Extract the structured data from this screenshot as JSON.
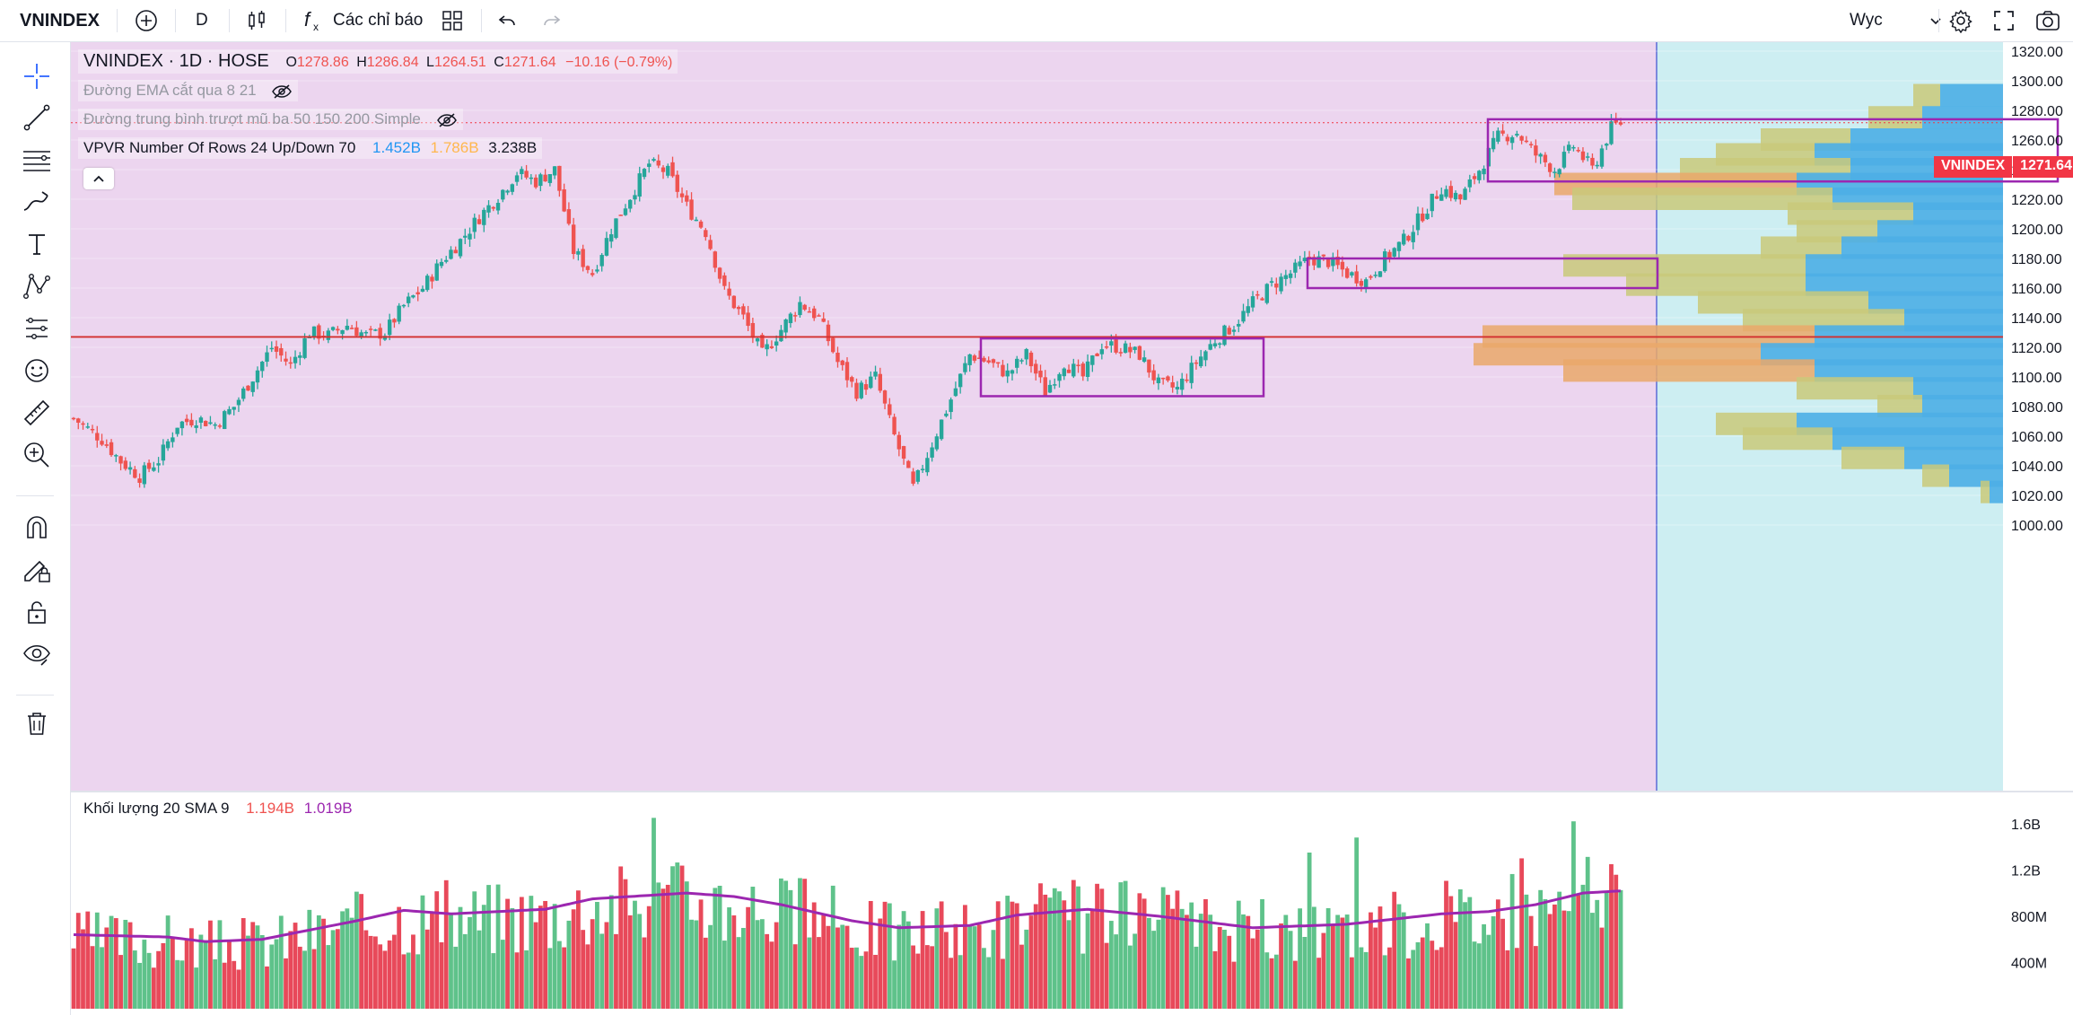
{
  "toolbar": {
    "symbol": "VNINDEX",
    "interval": "D",
    "indicators_label": "Các chỉ báo",
    "watchlist": "Wyc"
  },
  "sidebar": {
    "tools": [
      "crosshair-icon",
      "trend-line-icon",
      "horizontal-lines-icon",
      "brush-icon",
      "text-icon",
      "pattern-icon",
      "forecast-icon",
      "emoji-icon",
      "ruler-icon",
      "zoom-in-icon",
      "magnet-icon",
      "lock-drawing-icon",
      "lock-icon",
      "eye-icon",
      "trash-icon"
    ]
  },
  "legend": {
    "title": "VNINDEX · 1D · HOSE",
    "o_label": "O",
    "o": "1278.86",
    "h_label": "H",
    "h": "1286.84",
    "l_label": "L",
    "l": "1264.51",
    "c_label": "C",
    "c": "1271.64",
    "change": "−10.16 (−0.79%)",
    "ema": "Đường EMA cắt qua 8 21",
    "ma": "Đường trung bình trượt mũ ba 50 150 200 Simple",
    "vpvr": "VPVR Number Of Rows 24 Up/Down 70",
    "vpvr_up": "1.452B",
    "vpvr_down": "1.786B",
    "vpvr_total": "3.238B"
  },
  "volume_legend": {
    "title": "Khối lượng 20 SMA 9",
    "vol": "1.194B",
    "sma": "1.019B"
  },
  "price_tag": {
    "label": "VNINDEX",
    "value": "1271.64"
  },
  "colors": {
    "up": "#26a69a",
    "down": "#ef5350",
    "vol_up": "#5ec28a",
    "vol_down": "#e8495a",
    "bg_pink": "#ecd5ef",
    "bg_cyan": "#cdeef2",
    "sma": "#9c27b0",
    "box": "#9c27b0",
    "hline": "#d32f2f",
    "vp_blue": "#4daee5",
    "vp_olive": "#c9c97a",
    "vp_orange": "#eaa86a"
  },
  "chart_data": {
    "type": "candlestick",
    "interval": "1D",
    "ylim": [
      995,
      1325
    ],
    "y_ticks": [
      "1320.00",
      "1300.00",
      "1280.00",
      "1260.00",
      "1240.00",
      "1220.00",
      "1200.00",
      "1180.00",
      "1160.00",
      "1140.00",
      "1120.00",
      "1100.00",
      "1080.00",
      "1060.00",
      "1040.00",
      "1020.00",
      "1000.00"
    ],
    "y_tick_values": [
      1320,
      1300,
      1280,
      1260,
      1240,
      1220,
      1200,
      1180,
      1160,
      1140,
      1120,
      1100,
      1080,
      1060,
      1040,
      1020,
      1000
    ],
    "last_close": 1271.64,
    "horizontal_line": 1127,
    "close_path": [
      [
        0,
        1072
      ],
      [
        6,
        1058
      ],
      [
        10,
        1043
      ],
      [
        14,
        1033
      ],
      [
        18,
        1044
      ],
      [
        22,
        1068
      ],
      [
        26,
        1072
      ],
      [
        30,
        1068
      ],
      [
        34,
        1080
      ],
      [
        38,
        1100
      ],
      [
        42,
        1120
      ],
      [
        46,
        1108
      ],
      [
        50,
        1130
      ],
      [
        54,
        1128
      ],
      [
        58,
        1135
      ],
      [
        62,
        1128
      ],
      [
        66,
        1130
      ],
      [
        70,
        1148
      ],
      [
        74,
        1160
      ],
      [
        78,
        1178
      ],
      [
        82,
        1192
      ],
      [
        86,
        1208
      ],
      [
        90,
        1222
      ],
      [
        94,
        1238
      ],
      [
        98,
        1232
      ],
      [
        102,
        1240
      ],
      [
        106,
        1185
      ],
      [
        110,
        1170
      ],
      [
        114,
        1200
      ],
      [
        118,
        1222
      ],
      [
        122,
        1244
      ],
      [
        126,
        1238
      ],
      [
        130,
        1215
      ],
      [
        134,
        1198
      ],
      [
        138,
        1158
      ],
      [
        142,
        1140
      ],
      [
        146,
        1115
      ],
      [
        150,
        1132
      ],
      [
        154,
        1150
      ],
      [
        158,
        1140
      ],
      [
        162,
        1110
      ],
      [
        166,
        1090
      ],
      [
        170,
        1100
      ],
      [
        174,
        1060
      ],
      [
        178,
        1025
      ],
      [
        182,
        1055
      ],
      [
        186,
        1085
      ],
      [
        190,
        1115
      ],
      [
        194,
        1110
      ],
      [
        198,
        1102
      ],
      [
        202,
        1115
      ],
      [
        206,
        1090
      ],
      [
        210,
        1110
      ],
      [
        214,
        1100
      ],
      [
        218,
        1122
      ],
      [
        222,
        1120
      ],
      [
        226,
        1115
      ],
      [
        230,
        1095
      ],
      [
        234,
        1092
      ],
      [
        238,
        1110
      ],
      [
        242,
        1125
      ],
      [
        246,
        1135
      ],
      [
        250,
        1150
      ],
      [
        254,
        1162
      ],
      [
        258,
        1170
      ],
      [
        262,
        1180
      ],
      [
        266,
        1178
      ],
      [
        270,
        1170
      ],
      [
        274,
        1165
      ],
      [
        278,
        1180
      ],
      [
        282,
        1192
      ],
      [
        286,
        1210
      ],
      [
        290,
        1228
      ],
      [
        294,
        1220
      ],
      [
        298,
        1240
      ],
      [
        302,
        1262
      ],
      [
        306,
        1265
      ],
      [
        310,
        1250
      ],
      [
        314,
        1240
      ],
      [
        318,
        1256
      ],
      [
        322,
        1240
      ],
      [
        326,
        1268
      ],
      [
        328,
        1271.64
      ]
    ],
    "volume": {
      "ticks": [
        "1.6B",
        "1.2B",
        "800M",
        "400M"
      ],
      "tick_values": [
        1600,
        1200,
        800,
        400
      ],
      "last_volume_millions": 1194,
      "last_sma_millions": 1019,
      "sma_path": [
        [
          0,
          640
        ],
        [
          20,
          620
        ],
        [
          28,
          580
        ],
        [
          40,
          600
        ],
        [
          60,
          760
        ],
        [
          70,
          850
        ],
        [
          80,
          820
        ],
        [
          100,
          860
        ],
        [
          110,
          950
        ],
        [
          130,
          1000
        ],
        [
          140,
          970
        ],
        [
          150,
          900
        ],
        [
          165,
          760
        ],
        [
          175,
          700
        ],
        [
          190,
          720
        ],
        [
          200,
          810
        ],
        [
          215,
          860
        ],
        [
          230,
          800
        ],
        [
          250,
          700
        ],
        [
          270,
          730
        ],
        [
          290,
          820
        ],
        [
          300,
          840
        ],
        [
          310,
          900
        ],
        [
          320,
          1000
        ],
        [
          328,
          1019
        ]
      ],
      "spikes": [
        [
          123,
          1650
        ],
        [
          318,
          1620
        ],
        [
          272,
          1480
        ],
        [
          262,
          1350
        ],
        [
          307,
          1300
        ]
      ]
    },
    "volume_profile": {
      "rows": [
        {
          "price": 1290,
          "up": 30,
          "down": 70
        },
        {
          "price": 1275,
          "up": 60,
          "down": 90
        },
        {
          "price": 1260,
          "up": 100,
          "down": 170
        },
        {
          "price": 1250,
          "up": 110,
          "down": 210
        },
        {
          "price": 1240,
          "up": 190,
          "down": 170
        },
        {
          "price": 1230,
          "up": 270,
          "down": 230
        },
        {
          "price": 1220,
          "up": 290,
          "down": 190
        },
        {
          "price": 1210,
          "up": 140,
          "down": 100
        },
        {
          "price": 1198,
          "up": 90,
          "down": 140
        },
        {
          "price": 1187,
          "up": 90,
          "down": 180
        },
        {
          "price": 1175,
          "up": 270,
          "down": 220
        },
        {
          "price": 1162,
          "up": 200,
          "down": 220
        },
        {
          "price": 1150,
          "up": 190,
          "down": 150
        },
        {
          "price": 1138,
          "up": 180,
          "down": 110
        },
        {
          "price": 1127,
          "up": 370,
          "down": 210
        },
        {
          "price": 1115,
          "up": 320,
          "down": 270
        },
        {
          "price": 1104,
          "up": 280,
          "down": 210
        },
        {
          "price": 1092,
          "up": 130,
          "down": 100
        },
        {
          "price": 1080,
          "up": 50,
          "down": 90
        },
        {
          "price": 1068,
          "up": 90,
          "down": 230
        },
        {
          "price": 1058,
          "up": 100,
          "down": 190
        },
        {
          "price": 1045,
          "up": 70,
          "down": 110
        },
        {
          "price": 1033,
          "up": 30,
          "down": 60
        },
        {
          "price": 1022,
          "up": 10,
          "down": 15
        }
      ]
    },
    "boxes": [
      {
        "x1": 1093,
        "x2": 1408,
        "p_top": 1126,
        "p_bot": 1087
      },
      {
        "x1": 1457,
        "x2": 1847,
        "p_top": 1180,
        "p_bot": 1160
      },
      {
        "x1": 1658,
        "x2": 2293,
        "p_top": 1274,
        "p_bot": 1232
      }
    ]
  }
}
